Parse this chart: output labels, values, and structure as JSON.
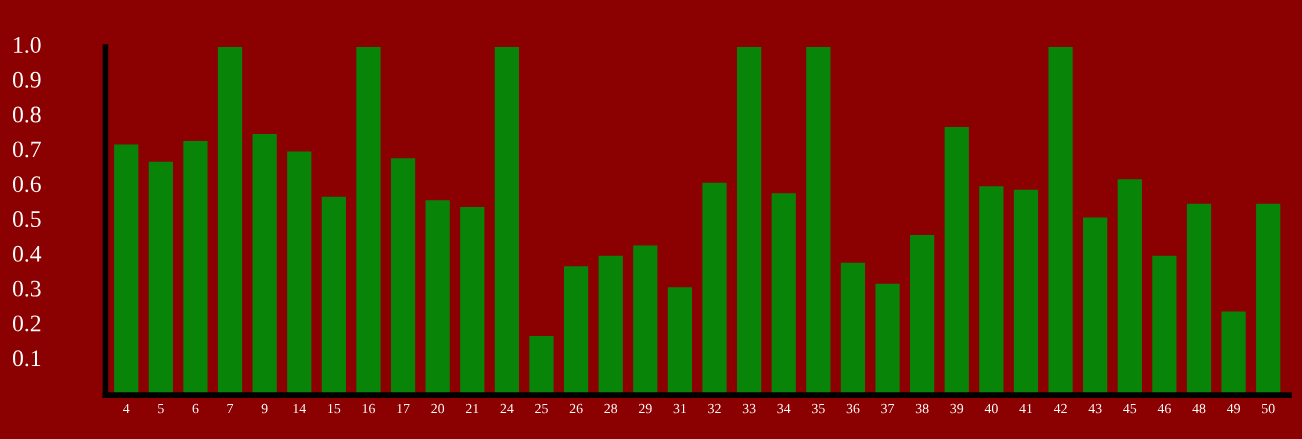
{
  "chart_data": {
    "type": "bar",
    "categories": [
      "4",
      "5",
      "6",
      "7",
      "9",
      "14",
      "15",
      "16",
      "17",
      "20",
      "21",
      "24",
      "25",
      "26",
      "28",
      "29",
      "31",
      "32",
      "33",
      "34",
      "35",
      "36",
      "37",
      "38",
      "39",
      "40",
      "41",
      "42",
      "43",
      "45",
      "46",
      "48",
      "49",
      "50"
    ],
    "values": [
      0.72,
      0.67,
      0.73,
      1.0,
      0.75,
      0.7,
      0.57,
      1.0,
      0.68,
      0.56,
      0.54,
      1.0,
      0.17,
      0.37,
      0.4,
      0.43,
      0.31,
      0.61,
      1.0,
      0.58,
      1.0,
      0.38,
      0.32,
      0.46,
      0.77,
      0.6,
      0.59,
      1.0,
      0.51,
      0.62,
      0.4,
      0.55,
      0.24,
      0.55
    ],
    "color": "#088508",
    "ylim": [
      0,
      1.0
    ],
    "yticks": [
      {
        "value": 0.1,
        "label": "0.1"
      },
      {
        "value": 0.2,
        "label": "0.2"
      },
      {
        "value": 0.3,
        "label": "0.3"
      },
      {
        "value": 0.4,
        "label": "0.4"
      },
      {
        "value": 0.5,
        "label": "0.5"
      },
      {
        "value": 0.6,
        "label": "0.6"
      },
      {
        "value": 0.7,
        "label": "0.7"
      },
      {
        "value": 0.8,
        "label": "0.8"
      },
      {
        "value": 0.9,
        "label": "0.9"
      },
      {
        "value": 1.0,
        "label": "1.0"
      }
    ],
    "grid": false,
    "legend": false
  }
}
